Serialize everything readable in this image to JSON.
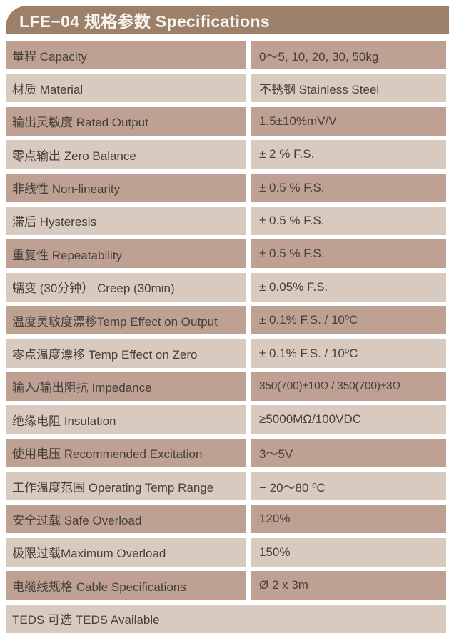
{
  "header": {
    "title": "LFE−04 规格参数 Specifications",
    "background": "#9c8069",
    "text_color": "#f8f4ef"
  },
  "colors": {
    "row_dark": "#bea193",
    "row_light": "#d9cabf",
    "text": "#45403b",
    "page_background": "#ffffff"
  },
  "table": {
    "rows": [
      {
        "label": "量程 Capacity",
        "value": "0～5, 10, 20, 30, 50kg",
        "shade": "dark"
      },
      {
        "label": "材质 Material",
        "value": "不锈钢 Stainless Steel",
        "shade": "light"
      },
      {
        "label": "输出灵敏度 Rated Output",
        "value": "1.5±10%mV/V",
        "shade": "dark"
      },
      {
        "label": "零点输出 Zero Balance",
        "value": "± 2 % F.S.",
        "shade": "light"
      },
      {
        "label": "非线性 Non-linearity",
        "value": "± 0.5 % F.S.",
        "shade": "dark"
      },
      {
        "label": "滞后 Hysteresis",
        "value": "± 0.5 % F.S.",
        "shade": "light"
      },
      {
        "label": "重复性 Repeatability",
        "value": "± 0.5 % F.S.",
        "shade": "dark"
      },
      {
        "label": "蠕变 (30分钟） Creep (30min)",
        "value": "± 0.05% F.S.",
        "shade": "light"
      },
      {
        "label": "温度灵敏度漂移Temp Effect on Output",
        "value": "± 0.1% F.S. / 10ºC",
        "shade": "dark"
      },
      {
        "label": "零点温度漂移 Temp Effect on Zero",
        "value": "± 0.1% F.S. / 10ºC",
        "shade": "light"
      },
      {
        "label": "输入/输出阻抗 Impedance",
        "value": "350(700)±10Ω / 350(700)±3Ω",
        "shade": "dark"
      },
      {
        "label": "绝缘电阻 Insulation",
        "value": "≥5000MΩ/100VDC",
        "shade": "light"
      },
      {
        "label": "使用电压 Recommended Excitation",
        "value": "3～5V",
        "shade": "dark"
      },
      {
        "label": "工作温度范围 Operating Temp Range",
        "value": "− 20～80 ºC",
        "shade": "light"
      },
      {
        "label": "安全过载 Safe Overload",
        "value": "120%",
        "shade": "dark"
      },
      {
        "label": "极限过载Maximum Overload",
        "value": "150%",
        "shade": "light"
      },
      {
        "label": "电缆线规格 Cable Specifications",
        "value": "Ø 2  x 3m",
        "shade": "dark"
      },
      {
        "label": "TEDS 可选 TEDS Available",
        "value": "",
        "shade": "light",
        "full_width": true
      }
    ]
  }
}
